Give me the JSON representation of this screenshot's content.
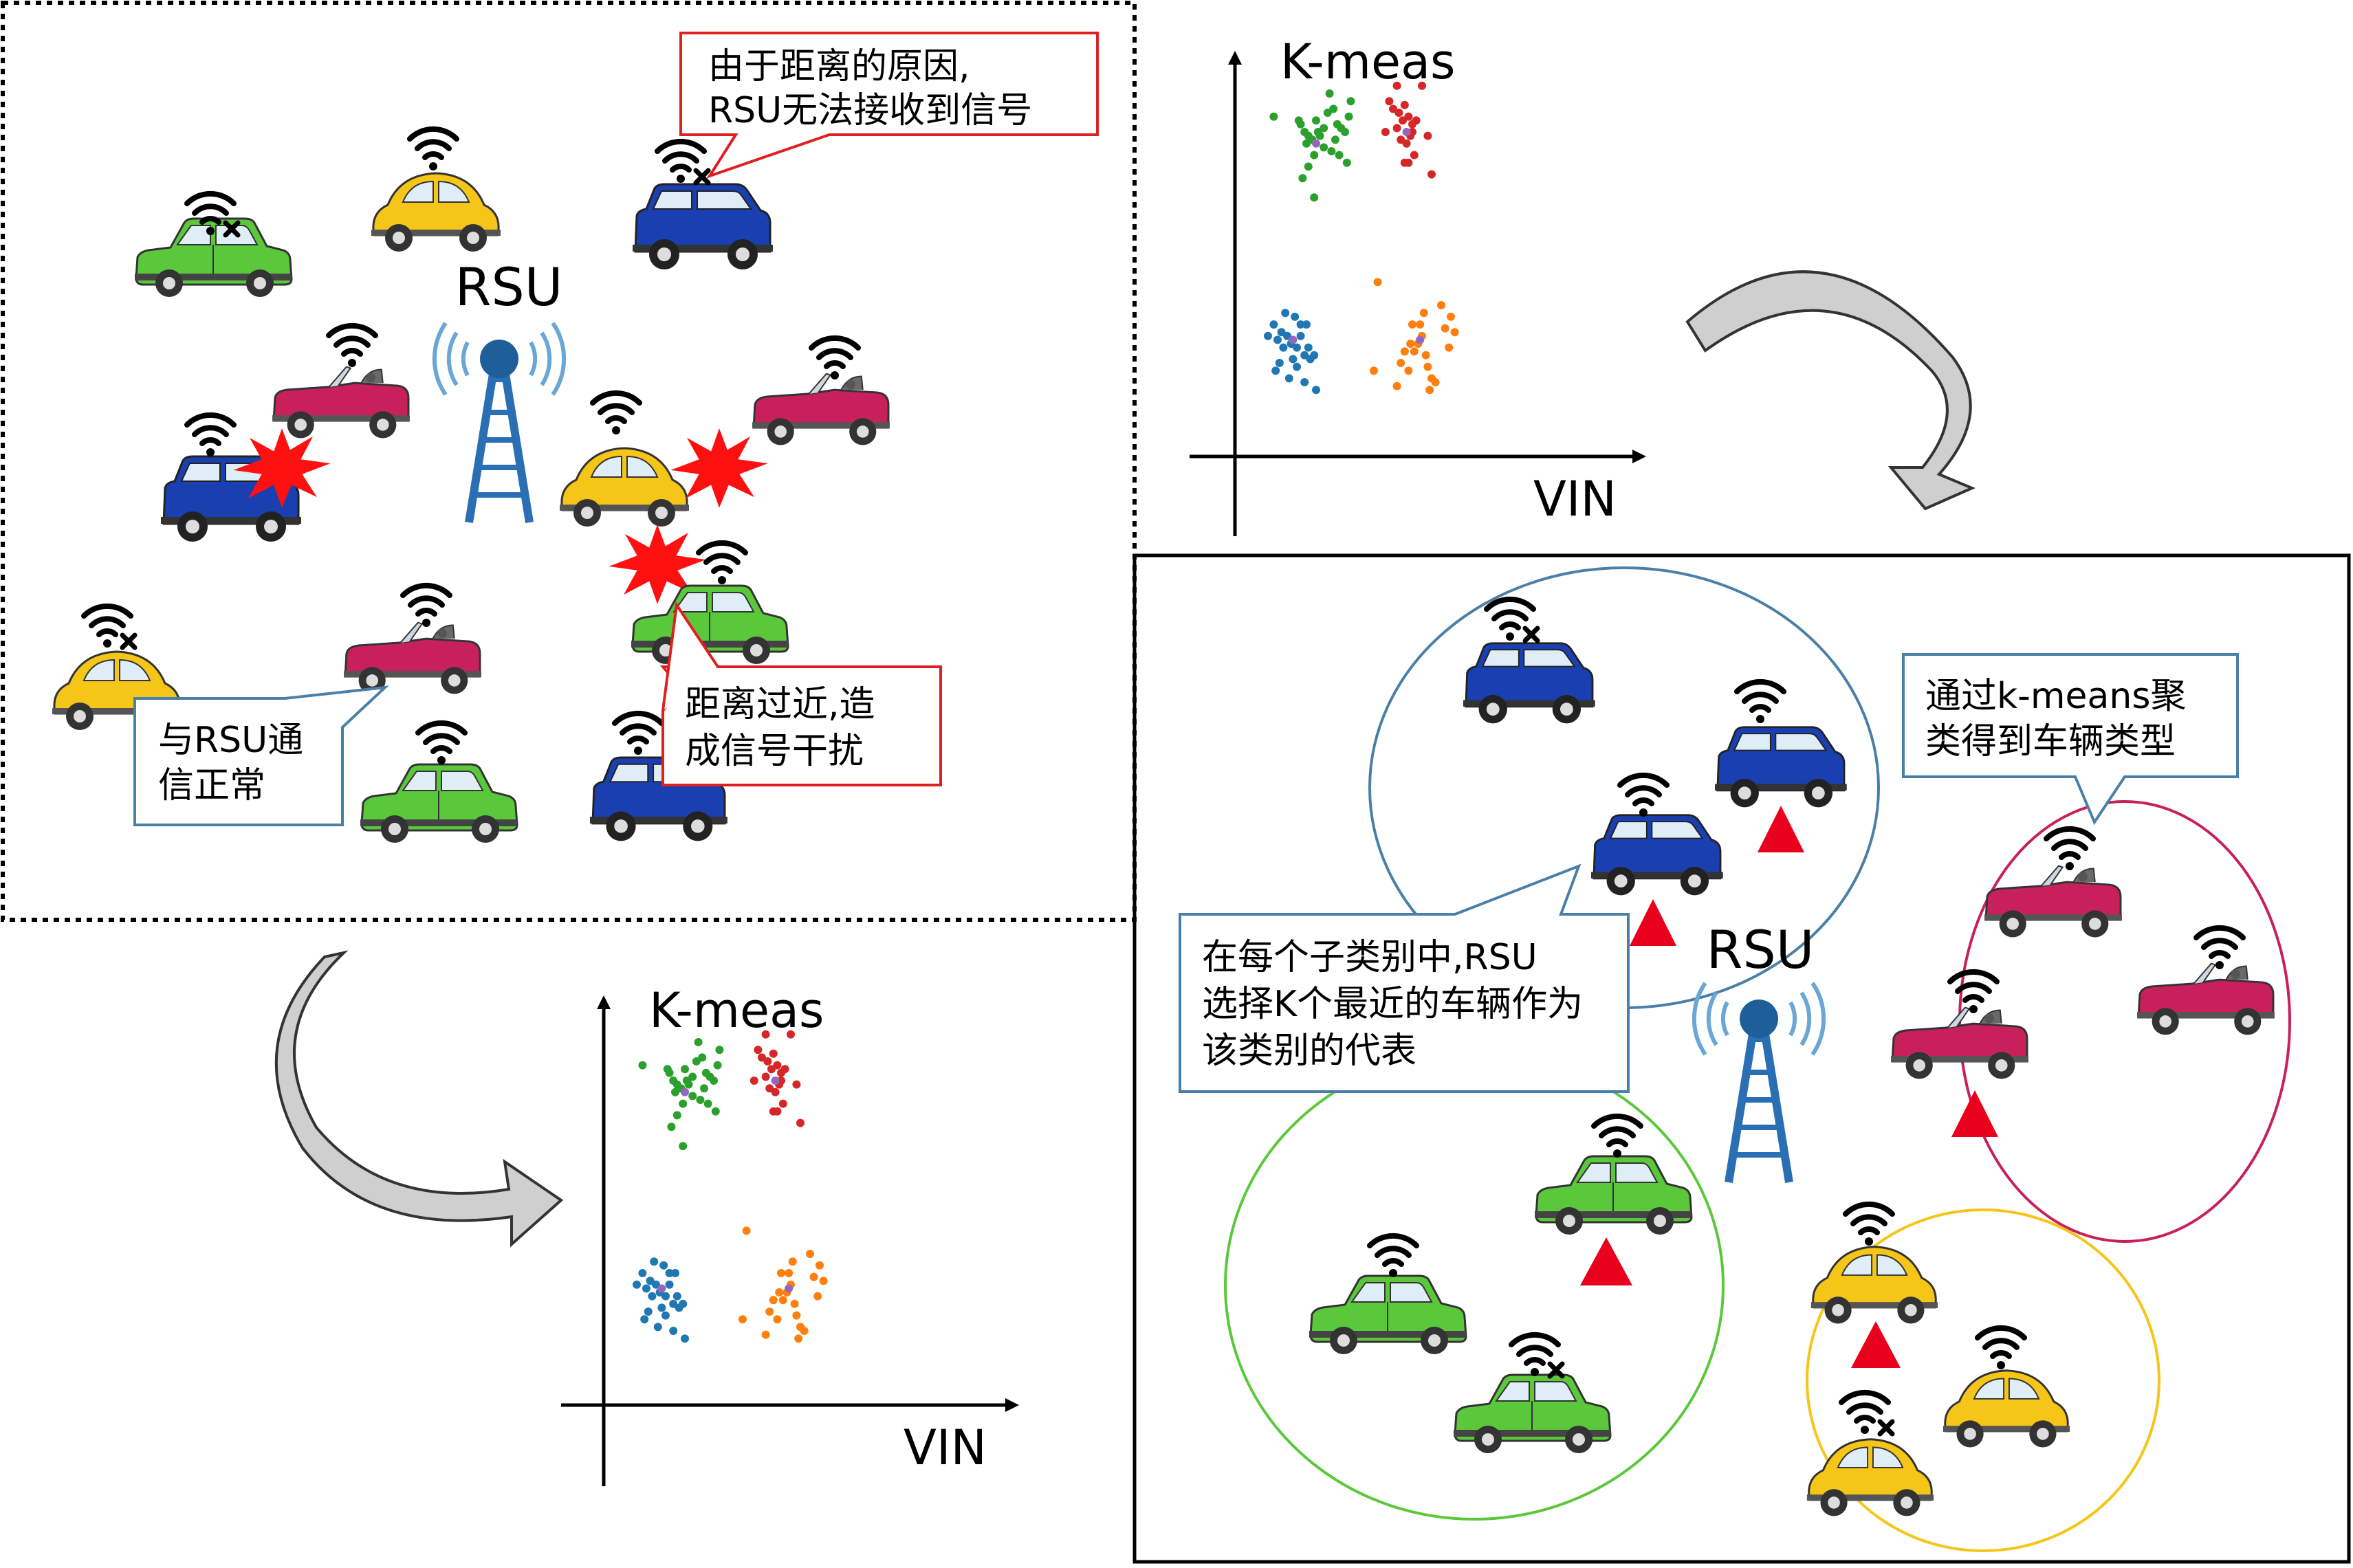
{
  "rsu_label": "RSU",
  "callouts": {
    "distance_line1": "由于距离的原因,",
    "distance_line2": "RSU无法接收到信号",
    "normal_line1": "与RSU通",
    "normal_line2": "信正常",
    "interference_line1": "距离过近,造",
    "interference_line2": "成信号干扰",
    "kmeans_line1": "通过k-means聚",
    "kmeans_line2": "类得到车辆类型",
    "rep_line1": "在每个子类别中,RSU",
    "rep_line2": "选择K个最近的车辆作为",
    "rep_line3": "该类别的代表"
  },
  "scatter_top": {
    "title": "K-meas",
    "xlabel": "VIN"
  },
  "scatter_bottom": {
    "title": "K-meas",
    "xlabel": "VIN"
  },
  "icons": {
    "wifi": "wifi-signal-icon",
    "wifi_off": "wifi-no-signal-icon",
    "interference": "interference-burst-icon",
    "representative": "representative-triangle-icon",
    "tower": "rsu-tower-icon"
  },
  "colors": {
    "green": "#5ac83a",
    "yellow": "#f5c518",
    "pink": "#c8205a",
    "blue": "#1a3fb0",
    "red_burst": "#ff1010",
    "cluster_blue": "#2ca02c",
    "callout_red": "#e02020",
    "callout_blue": "#4a7fa8",
    "ellipse_blue": "#4a7fa8",
    "ellipse_pink": "#c8205a",
    "ellipse_green": "#5ac83a",
    "ellipse_yellow": "#f5c518",
    "triangle_red": "#e8001c"
  },
  "chart_data": [
    {
      "type": "scatter",
      "title": "K-meas",
      "xlabel": "VIN",
      "ylabel": "",
      "series": [
        {
          "color": "#2ca02c",
          "points": [
            [
              0.08,
              0.84
            ],
            [
              0.21,
              0.83
            ],
            [
              0.22,
              0.82
            ],
            [
              0.24,
              0.8
            ],
            [
              0.26,
              0.79
            ],
            [
              0.25,
              0.77
            ],
            [
              0.28,
              0.78
            ],
            [
              0.31,
              0.8
            ],
            [
              0.32,
              0.79
            ],
            [
              0.3,
              0.83
            ],
            [
              0.34,
              0.81
            ],
            [
              0.36,
              0.85
            ],
            [
              0.37,
              0.9
            ],
            [
              0.39,
              0.86
            ],
            [
              0.4,
              0.78
            ],
            [
              0.43,
              0.81
            ],
            [
              0.45,
              0.8
            ],
            [
              0.47,
              0.84
            ],
            [
              0.42,
              0.74
            ],
            [
              0.46,
              0.72
            ],
            [
              0.26,
              0.71
            ],
            [
              0.23,
              0.68
            ],
            [
              0.29,
              0.74
            ],
            [
              0.34,
              0.76
            ],
            [
              0.29,
              0.63
            ],
            [
              0.38,
              0.75
            ],
            [
              0.41,
              0.82
            ],
            [
              0.48,
              0.88
            ]
          ]
        },
        {
          "color": "#d62728",
          "points": [
            [
              0.72,
              0.92
            ],
            [
              0.68,
              0.88
            ],
            [
              0.7,
              0.86
            ],
            [
              0.73,
              0.85
            ],
            [
              0.76,
              0.87
            ],
            [
              0.75,
              0.83
            ],
            [
              0.78,
              0.84
            ],
            [
              0.8,
              0.82
            ],
            [
              0.79,
              0.79
            ],
            [
              0.77,
              0.77
            ],
            [
              0.74,
              0.78
            ],
            [
              0.81,
              0.74
            ],
            [
              0.78,
              0.72
            ],
            [
              0.76,
              0.72
            ],
            [
              0.66,
              0.8
            ],
            [
              0.85,
              0.92
            ],
            [
              0.88,
              0.79
            ],
            [
              0.82,
              0.83
            ],
            [
              0.9,
              0.69
            ],
            [
              0.72,
              0.81
            ],
            [
              0.8,
              0.8
            ]
          ]
        },
        {
          "color": "#1f77b4",
          "points": [
            [
              0.05,
              0.27
            ],
            [
              0.08,
              0.3
            ],
            [
              0.1,
              0.26
            ],
            [
              0.12,
              0.28
            ],
            [
              0.13,
              0.24
            ],
            [
              0.15,
              0.27
            ],
            [
              0.17,
              0.25
            ],
            [
              0.2,
              0.24
            ],
            [
              0.22,
              0.27
            ],
            [
              0.24,
              0.22
            ],
            [
              0.26,
              0.24
            ],
            [
              0.27,
              0.21
            ],
            [
              0.29,
              0.22
            ],
            [
              0.14,
              0.33
            ],
            [
              0.19,
              0.32
            ],
            [
              0.22,
              0.3
            ],
            [
              0.11,
              0.2
            ],
            [
              0.16,
              0.16
            ],
            [
              0.24,
              0.15
            ],
            [
              0.3,
              0.13
            ],
            [
              0.09,
              0.18
            ],
            [
              0.18,
              0.21
            ],
            [
              0.25,
              0.3
            ],
            [
              0.2,
              0.19
            ]
          ]
        },
        {
          "color": "#ff7f0e",
          "points": [
            [
              0.6,
              0.18
            ],
            [
              0.62,
              0.41
            ],
            [
              0.74,
              0.2
            ],
            [
              0.76,
              0.23
            ],
            [
              0.79,
              0.25
            ],
            [
              0.81,
              0.23
            ],
            [
              0.83,
              0.25
            ],
            [
              0.85,
              0.27
            ],
            [
              0.87,
              0.22
            ],
            [
              0.88,
              0.19
            ],
            [
              0.9,
              0.16
            ],
            [
              0.89,
              0.13
            ],
            [
              0.92,
              0.15
            ],
            [
              0.84,
              0.3
            ],
            [
              0.8,
              0.3
            ],
            [
              0.78,
              0.18
            ],
            [
              0.72,
              0.14
            ],
            [
              0.95,
              0.35
            ],
            [
              0.97,
              0.29
            ],
            [
              1.0,
              0.32
            ],
            [
              1.02,
              0.28
            ],
            [
              0.99,
              0.24
            ],
            [
              0.86,
              0.33
            ]
          ]
        },
        {
          "color": "#9467bd",
          "points": [
            [
              0.3,
              0.77
            ],
            [
              0.77,
              0.8
            ],
            [
              0.18,
              0.26
            ],
            [
              0.84,
              0.26
            ]
          ]
        }
      ]
    },
    {
      "type": "scatter",
      "title": "K-meas",
      "xlabel": "VIN",
      "ylabel": "",
      "series": [
        {
          "color": "#2ca02c",
          "points": [
            [
              0.08,
              0.84
            ],
            [
              0.21,
              0.83
            ],
            [
              0.22,
              0.82
            ],
            [
              0.24,
              0.8
            ],
            [
              0.26,
              0.79
            ],
            [
              0.25,
              0.77
            ],
            [
              0.28,
              0.78
            ],
            [
              0.31,
              0.8
            ],
            [
              0.32,
              0.79
            ],
            [
              0.3,
              0.83
            ],
            [
              0.34,
              0.81
            ],
            [
              0.36,
              0.85
            ],
            [
              0.37,
              0.9
            ],
            [
              0.39,
              0.86
            ],
            [
              0.4,
              0.78
            ],
            [
              0.43,
              0.81
            ],
            [
              0.45,
              0.8
            ],
            [
              0.47,
              0.84
            ],
            [
              0.42,
              0.74
            ],
            [
              0.46,
              0.72
            ],
            [
              0.26,
              0.71
            ],
            [
              0.23,
              0.68
            ],
            [
              0.29,
              0.74
            ],
            [
              0.34,
              0.76
            ],
            [
              0.29,
              0.63
            ],
            [
              0.38,
              0.75
            ],
            [
              0.41,
              0.82
            ],
            [
              0.48,
              0.88
            ]
          ]
        },
        {
          "color": "#d62728",
          "points": [
            [
              0.72,
              0.92
            ],
            [
              0.68,
              0.88
            ],
            [
              0.7,
              0.86
            ],
            [
              0.73,
              0.85
            ],
            [
              0.76,
              0.87
            ],
            [
              0.75,
              0.83
            ],
            [
              0.78,
              0.84
            ],
            [
              0.8,
              0.82
            ],
            [
              0.79,
              0.79
            ],
            [
              0.77,
              0.77
            ],
            [
              0.74,
              0.78
            ],
            [
              0.81,
              0.74
            ],
            [
              0.78,
              0.72
            ],
            [
              0.76,
              0.72
            ],
            [
              0.66,
              0.8
            ],
            [
              0.85,
              0.92
            ],
            [
              0.88,
              0.79
            ],
            [
              0.82,
              0.83
            ],
            [
              0.9,
              0.69
            ],
            [
              0.72,
              0.81
            ],
            [
              0.8,
              0.8
            ]
          ]
        },
        {
          "color": "#1f77b4",
          "points": [
            [
              0.05,
              0.27
            ],
            [
              0.08,
              0.3
            ],
            [
              0.1,
              0.26
            ],
            [
              0.12,
              0.28
            ],
            [
              0.13,
              0.24
            ],
            [
              0.15,
              0.27
            ],
            [
              0.17,
              0.25
            ],
            [
              0.2,
              0.24
            ],
            [
              0.22,
              0.27
            ],
            [
              0.24,
              0.22
            ],
            [
              0.26,
              0.24
            ],
            [
              0.27,
              0.21
            ],
            [
              0.29,
              0.22
            ],
            [
              0.14,
              0.33
            ],
            [
              0.19,
              0.32
            ],
            [
              0.22,
              0.3
            ],
            [
              0.11,
              0.2
            ],
            [
              0.16,
              0.16
            ],
            [
              0.24,
              0.15
            ],
            [
              0.3,
              0.13
            ],
            [
              0.09,
              0.18
            ],
            [
              0.18,
              0.21
            ],
            [
              0.25,
              0.3
            ],
            [
              0.2,
              0.19
            ]
          ]
        },
        {
          "color": "#ff7f0e",
          "points": [
            [
              0.6,
              0.18
            ],
            [
              0.62,
              0.41
            ],
            [
              0.74,
              0.2
            ],
            [
              0.76,
              0.23
            ],
            [
              0.79,
              0.25
            ],
            [
              0.81,
              0.23
            ],
            [
              0.83,
              0.25
            ],
            [
              0.85,
              0.27
            ],
            [
              0.87,
              0.22
            ],
            [
              0.88,
              0.19
            ],
            [
              0.9,
              0.16
            ],
            [
              0.89,
              0.13
            ],
            [
              0.92,
              0.15
            ],
            [
              0.84,
              0.3
            ],
            [
              0.8,
              0.3
            ],
            [
              0.78,
              0.18
            ],
            [
              0.72,
              0.14
            ],
            [
              0.95,
              0.35
            ],
            [
              0.97,
              0.29
            ],
            [
              1.0,
              0.32
            ],
            [
              1.02,
              0.28
            ],
            [
              0.99,
              0.24
            ],
            [
              0.86,
              0.33
            ]
          ]
        },
        {
          "color": "#9467bd",
          "points": [
            [
              0.3,
              0.77
            ],
            [
              0.77,
              0.8
            ],
            [
              0.18,
              0.26
            ],
            [
              0.84,
              0.26
            ]
          ]
        }
      ]
    }
  ]
}
